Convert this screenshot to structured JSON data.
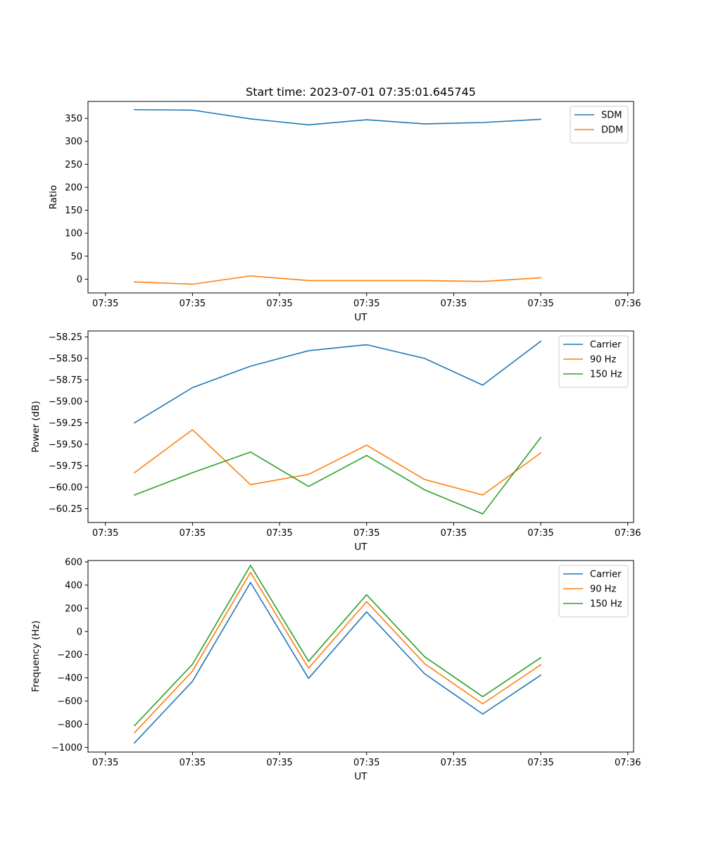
{
  "chart_data": [
    {
      "type": "line",
      "title": "Start time: 2023-07-01 07:35:01.645745",
      "xlabel": "UT",
      "ylabel": "Ratio",
      "x": [
        1,
        2,
        3,
        4,
        5,
        6,
        7,
        8
      ],
      "xlim": [
        0.2,
        9.6
      ],
      "xticks": [
        0.5,
        2,
        3.5,
        5,
        6.5,
        8,
        9.5
      ],
      "xtick_labels": [
        "07:35",
        "07:35",
        "07:35",
        "07:35",
        "07:35",
        "07:35",
        "07:36"
      ],
      "ylim": [
        -30,
        387
      ],
      "yticks": [
        0,
        50,
        100,
        150,
        200,
        250,
        300,
        350
      ],
      "ytick_labels": [
        "0",
        "50",
        "100",
        "150",
        "200",
        "250",
        "300",
        "350"
      ],
      "legend": "top-right",
      "series": [
        {
          "name": "SDM",
          "color": "#1f77b4",
          "values": [
            369,
            368,
            349,
            336,
            347,
            338,
            341,
            348
          ]
        },
        {
          "name": "DDM",
          "color": "#ff7f0e",
          "values": [
            -6,
            -11,
            7,
            -3,
            -3,
            -3,
            -5,
            3
          ]
        }
      ]
    },
    {
      "type": "line",
      "title": "",
      "xlabel": "UT",
      "ylabel": "Power (dB)",
      "x": [
        1,
        2,
        3,
        4,
        5,
        6,
        7,
        8
      ],
      "xlim": [
        0.2,
        9.6
      ],
      "xticks": [
        0.5,
        2,
        3.5,
        5,
        6.5,
        8,
        9.5
      ],
      "xtick_labels": [
        "07:35",
        "07:35",
        "07:35",
        "07:35",
        "07:35",
        "07:35",
        "07:36"
      ],
      "ylim": [
        -60.41,
        -58.18
      ],
      "yticks": [
        -60.25,
        -60.0,
        -59.75,
        -59.5,
        -59.25,
        -59.0,
        -58.75,
        -58.5,
        -58.25
      ],
      "ytick_labels": [
        "−60.25",
        "−60.00",
        "−59.75",
        "−59.50",
        "−59.25",
        "−59.00",
        "−58.75",
        "−58.50",
        "−58.25"
      ],
      "legend": "top-right",
      "series": [
        {
          "name": "Carrier",
          "color": "#1f77b4",
          "values": [
            -59.25,
            -58.84,
            -58.59,
            -58.41,
            -58.34,
            -58.5,
            -58.81,
            -58.3
          ]
        },
        {
          "name": "90 Hz",
          "color": "#ff7f0e",
          "values": [
            -59.83,
            -59.33,
            -59.97,
            -59.85,
            -59.51,
            -59.91,
            -60.09,
            -59.6
          ]
        },
        {
          "name": "150 Hz",
          "color": "#2ca02c",
          "values": [
            -60.09,
            -59.83,
            -59.59,
            -59.99,
            -59.63,
            -60.03,
            -60.31,
            -59.42
          ]
        }
      ]
    },
    {
      "type": "line",
      "title": "",
      "xlabel": "UT",
      "ylabel": "Frequency (Hz)",
      "x": [
        1,
        2,
        3,
        4,
        5,
        6,
        7,
        8
      ],
      "xlim": [
        0.2,
        9.6
      ],
      "xticks": [
        0.5,
        2,
        3.5,
        5,
        6.5,
        8,
        9.5
      ],
      "xtick_labels": [
        "07:35",
        "07:35",
        "07:35",
        "07:35",
        "07:35",
        "07:35",
        "07:36"
      ],
      "ylim": [
        -1040,
        612
      ],
      "yticks": [
        -1000,
        -800,
        -600,
        -400,
        -200,
        0,
        200,
        400,
        600
      ],
      "ytick_labels": [
        "−1000",
        "−800",
        "−600",
        "−400",
        "−200",
        "0",
        "200",
        "400",
        "600"
      ],
      "legend": "top-right",
      "series": [
        {
          "name": "Carrier",
          "color": "#1f77b4",
          "values": [
            -962,
            -430,
            423,
            -405,
            169,
            -365,
            -712,
            -377
          ]
        },
        {
          "name": "90 Hz",
          "color": "#ff7f0e",
          "values": [
            -873,
            -342,
            510,
            -317,
            257,
            -278,
            -624,
            -287
          ]
        },
        {
          "name": "150 Hz",
          "color": "#2ca02c",
          "values": [
            -813,
            -283,
            570,
            -257,
            317,
            -218,
            -562,
            -226
          ]
        }
      ]
    }
  ]
}
